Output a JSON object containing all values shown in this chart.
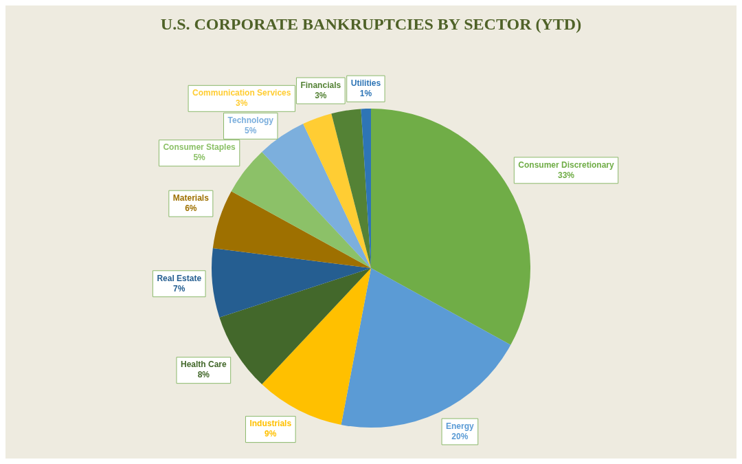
{
  "chart_data": {
    "type": "pie",
    "title": "U.S. CORPORATE BANKRUPTCIES BY SECTOR (YTD)",
    "categories": [
      "Consumer Discretionary",
      "Energy",
      "Industrials",
      "Health Care",
      "Real Estate",
      "Materials",
      "Consumer Staples",
      "Technology",
      "Communication Services",
      "Financials",
      "Utilities"
    ],
    "values": [
      33,
      20,
      9,
      8,
      7,
      6,
      5,
      5,
      3,
      3,
      1
    ],
    "value_labels": [
      "33%",
      "20%",
      "9%",
      "8%",
      "7%",
      "6%",
      "5%",
      "5%",
      "3%",
      "3%",
      "1%"
    ],
    "colors": [
      "#70ad47",
      "#5b9bd5",
      "#ffc000",
      "#43682b",
      "#255e91",
      "#9e7000",
      "#8cc168",
      "#7cafdd",
      "#ffcd33",
      "#548235",
      "#2e75b6"
    ],
    "legend": false
  }
}
